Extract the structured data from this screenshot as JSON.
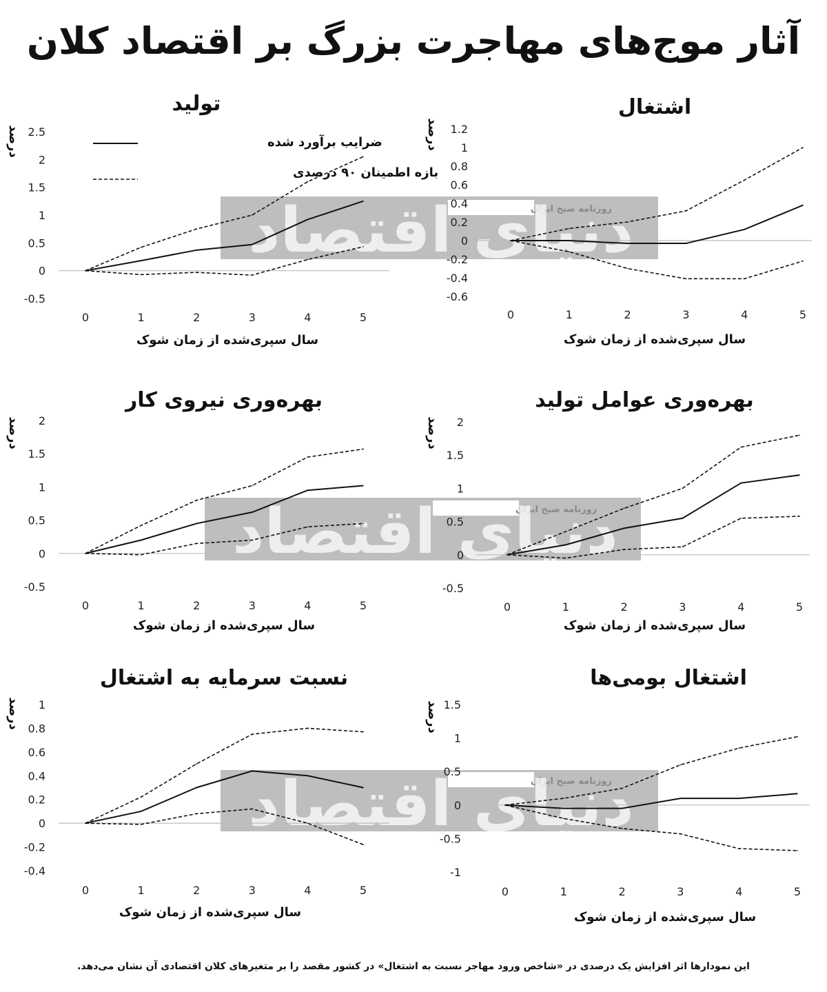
{
  "title": "آثار موج‌های مهاجرت بزرگ بر اقتصاد کلان",
  "footnote": "این نمودارها اثر افزایش یک درصدی در «شاخص ورود مهاجر نسبت به اشتغال» در کشور مقصد را بر متغیرهای کلان اقتصادی آن نشان می‌دهد.",
  "legend": {
    "estimate": "ضرایب برآورد شده",
    "interval": "بازه اطمینان ۹۰ درصدی"
  },
  "watermark": {
    "logo": "دنیای اقتصاد",
    "label": "روزنامه صبح ایران"
  },
  "colors": {
    "lines": "#111111",
    "zero_line": "#bbbbbb",
    "watermark_box": "#b3b3b3"
  },
  "chart_data": [
    {
      "type": "line",
      "title": "تولید",
      "xlabel": "سال سپری‌شده از زمان شوک",
      "ylabel": "درصد",
      "x": [
        0,
        1,
        2,
        3,
        4,
        5
      ],
      "ylim": [
        -0.5,
        2.5
      ],
      "yticks": [
        2.5,
        2,
        1.5,
        1,
        0.5,
        0,
        -0.5
      ],
      "ytick_labels": [
        "2.5",
        "2",
        "1.5",
        "1",
        "0.5",
        "0",
        "-0.5"
      ],
      "series": [
        {
          "name": "ضرایب برآورد شده",
          "style": "solid",
          "values": [
            0,
            0.18,
            0.37,
            0.47,
            0.92,
            1.25
          ]
        },
        {
          "name": "بازه اطمینان ۹۰ درصدی",
          "style": "dashed",
          "values": [
            0,
            0.42,
            0.75,
            1.0,
            1.6,
            2.05
          ]
        },
        {
          "style": "dashed",
          "values": [
            0,
            -0.07,
            -0.03,
            -0.08,
            0.2,
            0.43
          ]
        }
      ]
    },
    {
      "type": "line",
      "title": "اشتغال",
      "xlabel": "سال سپری‌شده از زمان شوک",
      "ylabel": "درصد",
      "x": [
        0,
        1,
        2,
        3,
        4,
        5
      ],
      "ylim": [
        -0.6,
        1.2
      ],
      "yticks": [
        1.2,
        1,
        0.8,
        0.6,
        0.4,
        0.2,
        0,
        -0.2,
        -0.4,
        -0.6
      ],
      "ytick_labels": [
        "1.2",
        "1",
        "0.8",
        "0.6",
        "0.4",
        "0.2",
        "0",
        "-0.2",
        "-0.4",
        "-0.6"
      ],
      "series": [
        {
          "style": "solid",
          "values": [
            0,
            0,
            -0.03,
            -0.03,
            0.12,
            0.38
          ]
        },
        {
          "style": "dashed",
          "values": [
            0,
            0.13,
            0.2,
            0.32,
            0.65,
            1.0
          ]
        },
        {
          "style": "dashed",
          "values": [
            0,
            -0.12,
            -0.3,
            -0.41,
            -0.41,
            -0.22
          ]
        }
      ]
    },
    {
      "type": "line",
      "title": "بهره‌وری نیروی کار",
      "xlabel": "سال سپری‌شده از زمان شوک",
      "ylabel": "درصد",
      "x": [
        0,
        1,
        2,
        3,
        4,
        5
      ],
      "ylim": [
        -0.5,
        2
      ],
      "yticks": [
        2,
        1.5,
        1,
        0.5,
        0,
        -0.5
      ],
      "ytick_labels": [
        "2",
        "1.5",
        "1",
        "0.5",
        "0",
        "-0.5"
      ],
      "series": [
        {
          "style": "solid",
          "values": [
            0,
            0.2,
            0.45,
            0.62,
            0.95,
            1.02
          ]
        },
        {
          "style": "dashed",
          "values": [
            0,
            0.42,
            0.8,
            1.02,
            1.45,
            1.57
          ]
        },
        {
          "style": "dashed",
          "values": [
            0,
            -0.02,
            0.15,
            0.2,
            0.4,
            0.45
          ]
        }
      ]
    },
    {
      "type": "line",
      "title": "بهره‌وری عوامل تولید",
      "xlabel": "سال سپری‌شده از زمان شوک",
      "ylabel": "درصد",
      "x": [
        0,
        1,
        2,
        3,
        4,
        5
      ],
      "ylim": [
        -0.5,
        2
      ],
      "yticks": [
        2,
        1.5,
        1,
        0.5,
        0,
        -0.5
      ],
      "ytick_labels": [
        "2",
        "1.5",
        "1",
        "0.5",
        "0",
        "-0.5"
      ],
      "series": [
        {
          "style": "solid",
          "values": [
            0,
            0.15,
            0.4,
            0.55,
            1.08,
            1.2
          ]
        },
        {
          "style": "dashed",
          "values": [
            0,
            0.35,
            0.7,
            1.0,
            1.62,
            1.8
          ]
        },
        {
          "style": "dashed",
          "values": [
            0,
            -0.05,
            0.08,
            0.12,
            0.55,
            0.58
          ]
        }
      ]
    },
    {
      "type": "line",
      "title": "نسبت سرمایه به اشتغال",
      "xlabel": "سال سپری‌شده از زمان شوک",
      "ylabel": "درصد",
      "x": [
        0,
        1,
        2,
        3,
        4,
        5
      ],
      "ylim": [
        -0.4,
        1
      ],
      "yticks": [
        1,
        0.8,
        0.6,
        0.4,
        0.2,
        0,
        -0.2,
        -0.4
      ],
      "ytick_labels": [
        "1",
        "0.8",
        "0.6",
        "0.4",
        "0.2",
        "0",
        "-0.2",
        "-0.4"
      ],
      "series": [
        {
          "style": "solid",
          "values": [
            0,
            0.1,
            0.3,
            0.44,
            0.4,
            0.3
          ]
        },
        {
          "style": "dashed",
          "values": [
            0,
            0.22,
            0.5,
            0.75,
            0.8,
            0.77
          ]
        },
        {
          "style": "dashed",
          "values": [
            0,
            -0.01,
            0.08,
            0.12,
            0.0,
            -0.18
          ]
        }
      ]
    },
    {
      "type": "line",
      "title": "اشتغال بومی‌ها",
      "xlabel": "سال سپری‌شده از زمان شوک",
      "ylabel": "درصد",
      "x": [
        0,
        1,
        2,
        3,
        4,
        5
      ],
      "ylim": [
        -1,
        1.5
      ],
      "yticks": [
        1.5,
        1,
        0.5,
        0,
        -0.5,
        -1
      ],
      "ytick_labels": [
        "1.5",
        "1",
        "0.5",
        "0",
        "-0.5",
        "-1"
      ],
      "series": [
        {
          "style": "solid",
          "values": [
            0,
            -0.05,
            -0.05,
            0.1,
            0.1,
            0.17
          ]
        },
        {
          "style": "dashed",
          "values": [
            0,
            0.1,
            0.25,
            0.6,
            0.85,
            1.02
          ]
        },
        {
          "style": "dashed",
          "values": [
            0,
            -0.2,
            -0.35,
            -0.43,
            -0.65,
            -0.68
          ]
        }
      ]
    }
  ]
}
